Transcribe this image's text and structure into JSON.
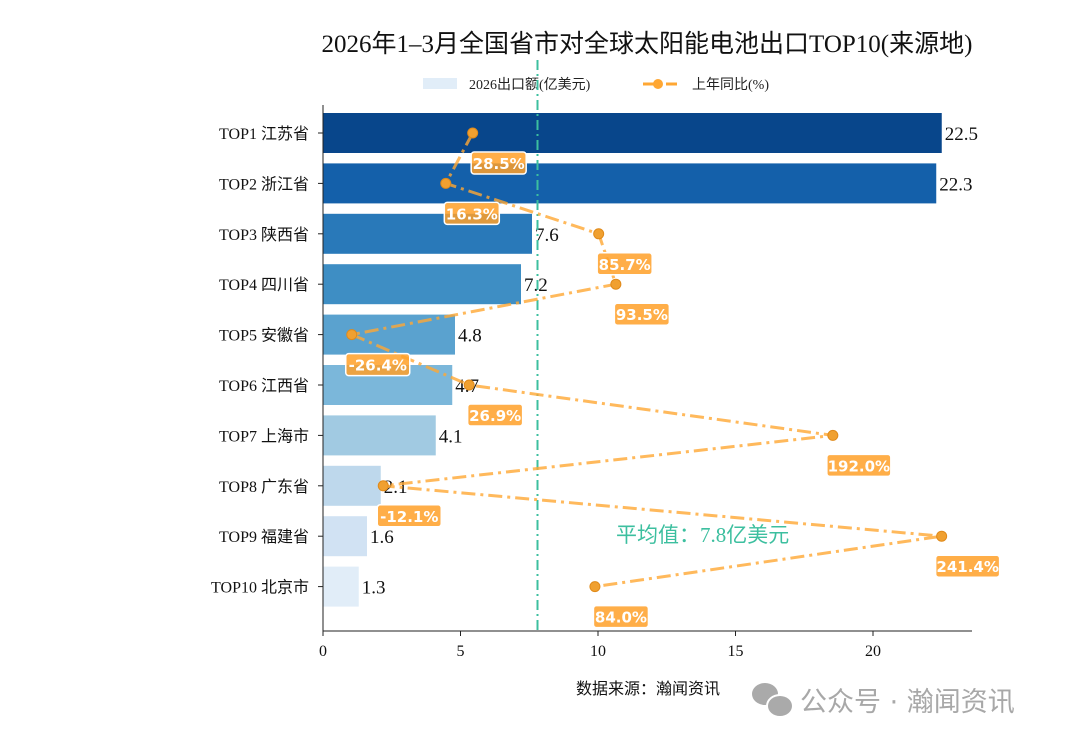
{
  "chart_data": {
    "type": "bar",
    "orientation": "horizontal",
    "title": "2026年1–3月全国省市对全球太阳能电池出口TOP10(来源地)",
    "categories": [
      "TOP1 江苏省",
      "TOP2 浙江省",
      "TOP3 陕西省",
      "TOP4 四川省",
      "TOP5 安徽省",
      "TOP6 江西省",
      "TOP7 上海市",
      "TOP8 广东省",
      "TOP9 福建省",
      "TOP10 北京市"
    ],
    "series": [
      {
        "name": "2026出口额(亿美元)",
        "type": "bar",
        "values": [
          22.5,
          22.3,
          7.6,
          7.2,
          4.8,
          4.7,
          4.1,
          2.1,
          1.6,
          1.3
        ],
        "value_labels": [
          "22.5",
          "22.3",
          "7.6",
          "7.2",
          "4.8",
          "4.7",
          "4.1",
          "2.1",
          "1.6",
          "1.3"
        ]
      },
      {
        "name": "上年同比(%)",
        "type": "line",
        "values": [
          28.5,
          16.3,
          85.7,
          93.5,
          -26.4,
          26.9,
          192.0,
          -12.1,
          241.4,
          84.0
        ],
        "value_labels": [
          "28.5%",
          "16.3%",
          "85.7%",
          "93.5%",
          "-26.4%",
          "26.9%",
          "192.0%",
          "-12.1%",
          "241.4%",
          "84.0%"
        ],
        "color": "#ffa733"
      }
    ],
    "xlim": [
      0,
      23.6
    ],
    "xticks": [
      "0",
      "5",
      "10",
      "15",
      "20"
    ],
    "average": {
      "value": 7.8,
      "label": "平均值：7.8亿美元",
      "color": "#3cbf9f"
    },
    "bar_colors": [
      "#08468b",
      "#1460aa",
      "#2979b9",
      "#3e8ec4",
      "#5aa2cf",
      "#7bb7da",
      "#a1cae2",
      "#bed8ec",
      "#d1e2f3",
      "#e1edf8"
    ],
    "legend_position": "top-center",
    "grid": false,
    "source": "数据来源：瀚闻资讯",
    "watermark": "公众号 · 瀚闻资讯"
  }
}
